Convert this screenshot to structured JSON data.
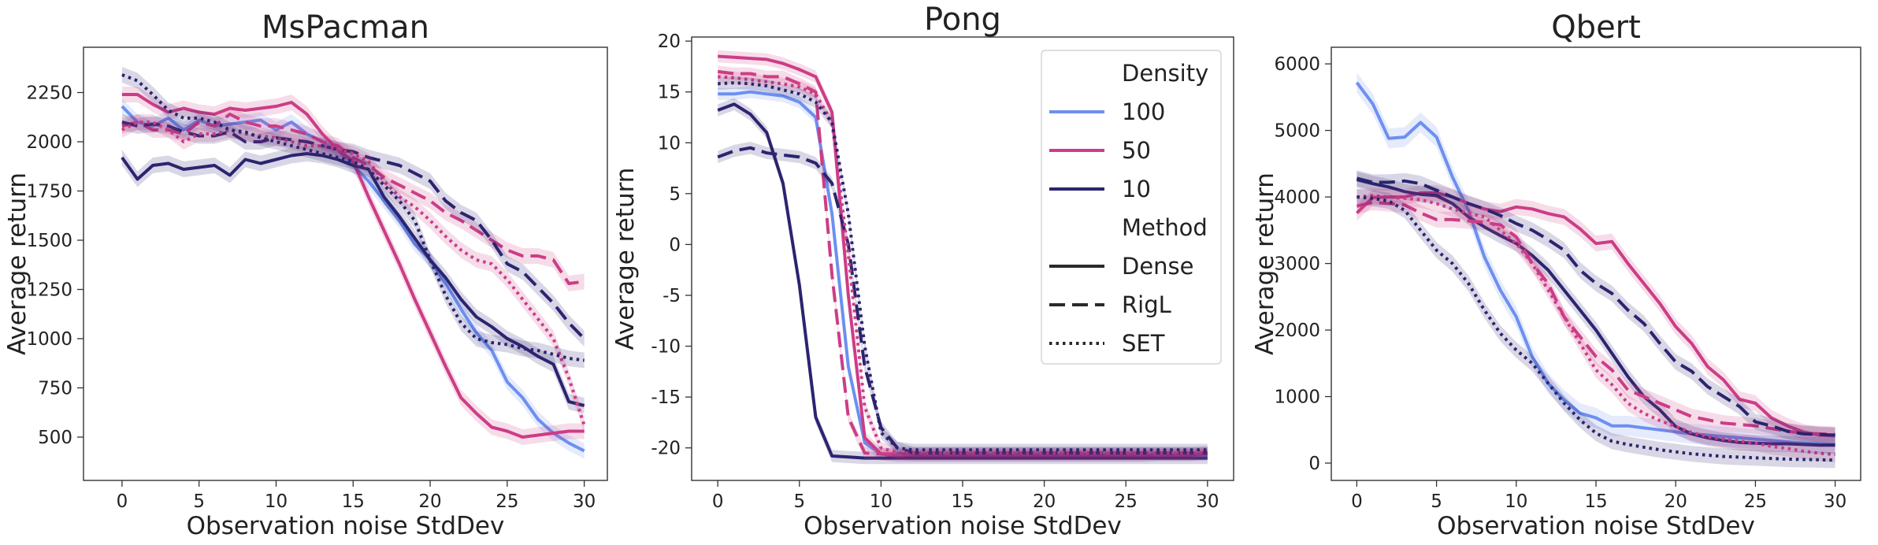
{
  "chart_data": [
    {
      "type": "line",
      "title": "MsPacman",
      "xlabel": "Observation noise StdDev",
      "ylabel": "Average return",
      "xlim": [
        -2.5,
        31.5
      ],
      "ylim": [
        280,
        2480
      ],
      "xticks": [
        0,
        5,
        10,
        15,
        20,
        25,
        30
      ],
      "yticks": [
        500,
        750,
        1000,
        1250,
        1500,
        1750,
        2000,
        2250
      ],
      "x": [
        0,
        1,
        2,
        3,
        4,
        5,
        6,
        7,
        8,
        9,
        10,
        11,
        12,
        13,
        14,
        15,
        16,
        17,
        18,
        19,
        20,
        21,
        22,
        23,
        24,
        25,
        26,
        27,
        28,
        29,
        30
      ],
      "series": [
        {
          "density": "100",
          "method": "Dense",
          "band": 40,
          "values": [
            2180,
            2100,
            2080,
            2120,
            2060,
            2110,
            2080,
            2090,
            2100,
            2110,
            2060,
            2100,
            2040,
            2000,
            1960,
            1880,
            1800,
            1700,
            1600,
            1480,
            1400,
            1280,
            1150,
            1030,
            940,
            780,
            700,
            590,
            520,
            470,
            430
          ]
        },
        {
          "density": "50",
          "method": "Dense",
          "band": 40,
          "values": [
            2240,
            2240,
            2190,
            2150,
            2170,
            2150,
            2140,
            2170,
            2160,
            2170,
            2180,
            2200,
            2140,
            2040,
            1960,
            1900,
            1720,
            1550,
            1380,
            1200,
            1030,
            860,
            700,
            620,
            550,
            530,
            500,
            510,
            520,
            530,
            530
          ]
        },
        {
          "density": "10",
          "method": "Dense",
          "band": 40,
          "values": [
            1920,
            1810,
            1880,
            1890,
            1860,
            1870,
            1880,
            1830,
            1910,
            1890,
            1910,
            1930,
            1940,
            1930,
            1910,
            1880,
            1860,
            1720,
            1620,
            1510,
            1400,
            1310,
            1200,
            1110,
            1060,
            1000,
            960,
            910,
            870,
            680,
            660
          ]
        },
        {
          "density": "50",
          "method": "RigL",
          "band": 40,
          "values": [
            2080,
            2100,
            2060,
            2060,
            2040,
            2100,
            2080,
            2140,
            2100,
            2080,
            2080,
            2060,
            2040,
            2000,
            1980,
            1920,
            1880,
            1820,
            1780,
            1740,
            1700,
            1640,
            1600,
            1550,
            1500,
            1450,
            1420,
            1420,
            1400,
            1280,
            1290
          ]
        },
        {
          "density": "10",
          "method": "RigL",
          "band": 40,
          "values": [
            2100,
            2080,
            2090,
            2080,
            2050,
            2030,
            2030,
            2050,
            2000,
            2000,
            2020,
            2010,
            2000,
            1980,
            1960,
            1950,
            1920,
            1900,
            1880,
            1840,
            1800,
            1700,
            1640,
            1600,
            1500,
            1380,
            1340,
            1260,
            1180,
            1080,
            1000
          ]
        },
        {
          "density": "50",
          "method": "SET",
          "band": 40,
          "values": [
            2060,
            2100,
            2100,
            2060,
            2000,
            2040,
            2040,
            2060,
            2040,
            2030,
            2020,
            2000,
            1980,
            1980,
            1960,
            1940,
            1900,
            1800,
            1720,
            1670,
            1600,
            1520,
            1450,
            1400,
            1380,
            1300,
            1200,
            1100,
            1000,
            800,
            560
          ]
        },
        {
          "density": "10",
          "method": "SET",
          "band": 40,
          "values": [
            2340,
            2310,
            2240,
            2160,
            2120,
            2120,
            2100,
            2060,
            2050,
            2020,
            2000,
            1980,
            1960,
            1940,
            1920,
            1900,
            1860,
            1780,
            1700,
            1600,
            1400,
            1220,
            1080,
            1000,
            980,
            970,
            950,
            940,
            920,
            900,
            890
          ]
        }
      ]
    },
    {
      "type": "line",
      "title": "Pong",
      "xlabel": "Observation noise StdDev",
      "ylabel": "Average return",
      "xlim": [
        -1.6,
        31.6
      ],
      "ylim": [
        -23.2,
        20.4
      ],
      "xticks": [
        0,
        5,
        10,
        15,
        20,
        25,
        30
      ],
      "yticks": [
        -20,
        -15,
        -10,
        -5,
        0,
        5,
        10,
        15,
        20
      ],
      "x": [
        0,
        1,
        2,
        3,
        4,
        5,
        6,
        7,
        8,
        9,
        10,
        11,
        12,
        13,
        14,
        15,
        16,
        17,
        18,
        19,
        20,
        21,
        22,
        23,
        24,
        25,
        26,
        27,
        28,
        29,
        30
      ],
      "series": [
        {
          "density": "100",
          "method": "Dense",
          "band": 0.6,
          "values": [
            14.8,
            14.8,
            15.0,
            14.8,
            14.6,
            14.0,
            12.5,
            3.0,
            -12.0,
            -19.5,
            -20.6,
            -20.6,
            -20.7,
            -20.7,
            -20.7,
            -20.7,
            -20.7,
            -20.7,
            -20.7,
            -20.7,
            -20.7,
            -20.7,
            -20.7,
            -20.7,
            -20.7,
            -20.7,
            -20.7,
            -20.7,
            -20.7,
            -20.7,
            -20.7
          ]
        },
        {
          "density": "50",
          "method": "Dense",
          "band": 0.6,
          "values": [
            18.5,
            18.4,
            18.3,
            18.2,
            17.8,
            17.2,
            16.5,
            13.0,
            -5.0,
            -19.0,
            -20.6,
            -20.8,
            -20.8,
            -20.8,
            -20.8,
            -20.8,
            -20.8,
            -20.8,
            -20.8,
            -20.8,
            -20.8,
            -20.8,
            -20.8,
            -20.8,
            -20.8,
            -20.8,
            -20.8,
            -20.7,
            -20.7,
            -20.7,
            -20.5
          ]
        },
        {
          "density": "10",
          "method": "Dense",
          "band": 0.6,
          "values": [
            13.2,
            13.8,
            12.8,
            11.0,
            6.0,
            -4.0,
            -17.0,
            -20.8,
            -20.9,
            -21.0,
            -21.0,
            -21.0,
            -21.0,
            -21.0,
            -21.0,
            -21.0,
            -21.0,
            -21.0,
            -21.0,
            -21.0,
            -21.0,
            -21.0,
            -21.0,
            -21.0,
            -21.0,
            -21.0,
            -21.0,
            -21.0,
            -21.0,
            -21.0,
            -21.0
          ]
        },
        {
          "density": "50",
          "method": "RigL",
          "band": 0.6,
          "values": [
            17.0,
            16.8,
            16.8,
            16.5,
            16.5,
            15.8,
            15.0,
            -3.0,
            -17.0,
            -20.5,
            -20.6,
            -20.6,
            -20.6,
            -20.6,
            -20.6,
            -20.6,
            -20.6,
            -20.6,
            -20.6,
            -20.6,
            -20.6,
            -20.6,
            -20.6,
            -20.6,
            -20.6,
            -20.6,
            -20.6,
            -20.6,
            -20.6,
            -20.6,
            -20.6
          ]
        },
        {
          "density": "10",
          "method": "RigL",
          "band": 0.6,
          "values": [
            8.6,
            9.2,
            9.5,
            9.0,
            8.8,
            8.6,
            8.0,
            6.0,
            0.0,
            -12.0,
            -18.0,
            -20.0,
            -20.5,
            -20.5,
            -20.5,
            -20.5,
            -20.5,
            -20.5,
            -20.5,
            -20.5,
            -20.5,
            -20.5,
            -20.5,
            -20.5,
            -20.5,
            -20.5,
            -20.5,
            -20.5,
            -20.5,
            -20.5,
            -20.5
          ]
        },
        {
          "density": "50",
          "method": "SET",
          "band": 0.6,
          "values": [
            16.5,
            16.4,
            16.2,
            16.0,
            15.8,
            15.5,
            14.8,
            12.0,
            -1.0,
            -16.0,
            -20.0,
            -20.5,
            -20.5,
            -20.5,
            -20.5,
            -20.5,
            -20.5,
            -20.5,
            -20.5,
            -20.5,
            -20.5,
            -20.5,
            -20.5,
            -20.5,
            -20.5,
            -20.5,
            -20.5,
            -20.5,
            -20.5,
            -20.5,
            -20.4
          ]
        },
        {
          "density": "10",
          "method": "SET",
          "band": 0.6,
          "values": [
            15.8,
            15.9,
            15.8,
            15.6,
            15.2,
            14.8,
            14.0,
            12.0,
            3.0,
            -10.0,
            -18.5,
            -20.0,
            -20.2,
            -20.2,
            -20.2,
            -20.2,
            -20.2,
            -20.2,
            -20.2,
            -20.2,
            -20.2,
            -20.2,
            -20.2,
            -20.2,
            -20.2,
            -20.2,
            -20.2,
            -20.2,
            -20.2,
            -20.2,
            -20.2
          ]
        }
      ],
      "legend": {
        "position": "top-right",
        "density_title": "Density",
        "method_title": "Method",
        "density_entries": [
          {
            "label": "100",
            "color": "#6d8ff0"
          },
          {
            "label": "50",
            "color": "#cc3d86"
          },
          {
            "label": "10",
            "color": "#2b2470"
          }
        ],
        "method_entries": [
          {
            "label": "Dense",
            "dash": "solid"
          },
          {
            "label": "RigL",
            "dash": "dashed"
          },
          {
            "label": "SET",
            "dash": "dotted"
          }
        ]
      }
    },
    {
      "type": "line",
      "title": "Qbert",
      "xlabel": "Observation noise StdDev",
      "ylabel": "Average return",
      "xlim": [
        -1.6,
        31.6
      ],
      "ylim": [
        -260,
        6250
      ],
      "xticks": [
        0,
        5,
        10,
        15,
        20,
        25,
        30
      ],
      "yticks": [
        0,
        1000,
        2000,
        3000,
        4000,
        5000,
        6000
      ],
      "x": [
        0,
        1,
        2,
        3,
        4,
        5,
        6,
        7,
        8,
        9,
        10,
        11,
        12,
        13,
        14,
        15,
        16,
        17,
        18,
        19,
        20,
        21,
        22,
        23,
        24,
        25,
        26,
        27,
        28,
        29,
        30
      ],
      "series": [
        {
          "density": "100",
          "method": "Dense",
          "band": 150,
          "values": [
            5720,
            5400,
            4880,
            4900,
            5120,
            4900,
            4300,
            3800,
            3100,
            2600,
            2200,
            1600,
            1200,
            950,
            750,
            680,
            560,
            560,
            530,
            500,
            470,
            440,
            420,
            400,
            380,
            360,
            340,
            320,
            300,
            290,
            280
          ]
        },
        {
          "density": "50",
          "method": "Dense",
          "band": 120,
          "values": [
            3760,
            3990,
            4000,
            4000,
            4060,
            4060,
            4000,
            3900,
            3820,
            3780,
            3850,
            3820,
            3750,
            3700,
            3520,
            3300,
            3330,
            3000,
            2700,
            2400,
            2050,
            1800,
            1450,
            1250,
            960,
            900,
            680,
            560,
            470,
            420,
            410
          ]
        },
        {
          "density": "10",
          "method": "Dense",
          "band": 120,
          "values": [
            4260,
            4200,
            4150,
            4080,
            4040,
            4020,
            3900,
            3700,
            3550,
            3420,
            3300,
            3120,
            2900,
            2600,
            2300,
            2000,
            1650,
            1300,
            1000,
            800,
            550,
            440,
            380,
            340,
            310,
            300,
            290,
            290,
            280,
            270,
            270
          ]
        },
        {
          "density": "50",
          "method": "RigL",
          "band": 120,
          "values": [
            3860,
            3920,
            3900,
            3880,
            3760,
            3660,
            3660,
            3640,
            3620,
            3580,
            3400,
            3000,
            2700,
            2200,
            1900,
            1600,
            1400,
            1100,
            1000,
            900,
            800,
            700,
            650,
            600,
            580,
            560,
            520,
            480,
            450,
            440,
            430
          ]
        },
        {
          "density": "10",
          "method": "RigL",
          "band": 120,
          "values": [
            4280,
            4220,
            4220,
            4240,
            4200,
            4100,
            4000,
            3900,
            3820,
            3720,
            3600,
            3500,
            3360,
            3200,
            2900,
            2700,
            2550,
            2300,
            2100,
            1800,
            1520,
            1380,
            1150,
            1000,
            850,
            620,
            560,
            480,
            440,
            430,
            420
          ]
        },
        {
          "density": "50",
          "method": "SET",
          "band": 120,
          "values": [
            4000,
            4020,
            4000,
            3980,
            3960,
            3900,
            3820,
            3760,
            3700,
            3500,
            3300,
            3000,
            2600,
            2200,
            1800,
            1400,
            1180,
            900,
            750,
            640,
            550,
            460,
            400,
            360,
            330,
            300,
            250,
            220,
            180,
            150,
            130
          ]
        },
        {
          "density": "10",
          "method": "SET",
          "band": 120,
          "values": [
            4000,
            3980,
            3940,
            3800,
            3500,
            3200,
            3000,
            2700,
            2300,
            1950,
            1700,
            1500,
            1200,
            900,
            650,
            450,
            330,
            280,
            240,
            200,
            170,
            140,
            120,
            100,
            90,
            80,
            70,
            60,
            55,
            50,
            45
          ]
        }
      ]
    }
  ],
  "style": {
    "colors": {
      "100": "#6d8ff0",
      "50": "#cc3d86",
      "10": "#2b2470"
    },
    "dashes": {
      "Dense": "",
      "RigL": "20 9",
      "SET": "3.5 5"
    }
  }
}
